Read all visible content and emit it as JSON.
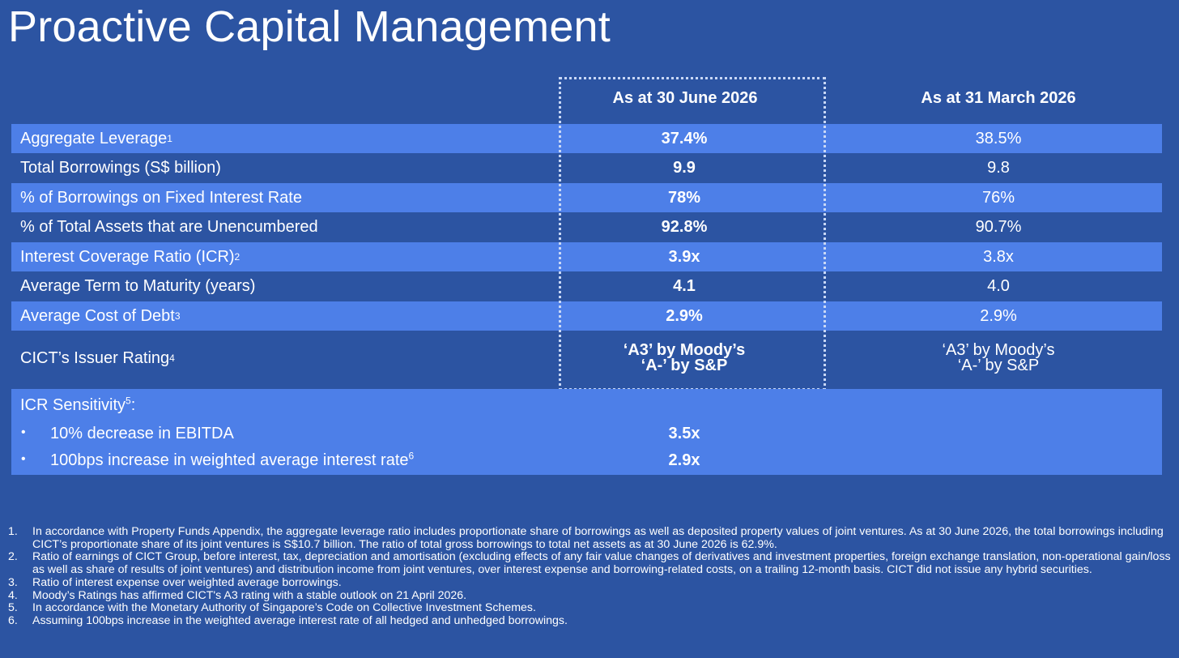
{
  "title": "Proactive Capital Management",
  "columns": {
    "current": "As at 30 June 2026",
    "prior": "As at 31 March 2026"
  },
  "rows": [
    {
      "label": "Aggregate Leverage",
      "sup": "1",
      "current": "37.4%",
      "prior": "38.5%"
    },
    {
      "label": "Total Borrowings (S$ billion)",
      "sup": "",
      "current": "9.9",
      "prior": "9.8"
    },
    {
      "label": "% of Borrowings on Fixed Interest Rate",
      "sup": "",
      "current": "78%",
      "prior": "76%"
    },
    {
      "label": "% of Total Assets that are Unencumbered",
      "sup": "",
      "current": "92.8%",
      "prior": "90.7%"
    },
    {
      "label": "Interest Coverage Ratio (ICR)",
      "sup": "2",
      "current": "3.9x",
      "prior": "3.8x"
    },
    {
      "label": "Average Term to Maturity (years)",
      "sup": "",
      "current": "4.1",
      "prior": "4.0"
    },
    {
      "label": "Average Cost of Debt",
      "sup": "3",
      "current": "2.9%",
      "prior": "2.9%"
    },
    {
      "label": "CICT’s Issuer Rating",
      "sup": "4",
      "current_line1": "‘A3’ by Moody’s",
      "current_line2": "‘A-’ by S&P",
      "prior_line1": "‘A3’ by Moody’s",
      "prior_line2": "‘A-’ by S&P"
    }
  ],
  "sensitivity": {
    "heading": "ICR Sensitivity",
    "heading_sup": "5",
    "heading_suffix": ":",
    "bullet": "•",
    "items": [
      {
        "label": "10% decrease in EBITDA",
        "sup": "",
        "value": "3.5x"
      },
      {
        "label": "100bps increase in weighted average interest rate",
        "sup": "6",
        "value": "2.9x"
      }
    ]
  },
  "footnotes": [
    {
      "num": "1.",
      "text": "In accordance with Property Funds Appendix, the aggregate leverage ratio includes proportionate share of borrowings as well as deposited property values of joint ventures. As at 30 June 2026, the total borrowings including CICT’s proportionate share of its joint ventures is S$10.7 billion. The ratio of total gross borrowings to total net assets as at 30 June 2026 is 62.9%."
    },
    {
      "num": "2.",
      "text": "Ratio of earnings of CICT Group, before interest, tax, depreciation and amortisation (excluding effects of any fair value changes of derivatives and investment properties, foreign exchange translation, non-operational gain/loss as well as share of results of joint ventures) and distribution income from joint ventures, over interest expense and borrowing-related costs, on a trailing 12-month basis. CICT did not issue any hybrid securities."
    },
    {
      "num": "3.",
      "text": "Ratio of interest expense over weighted average borrowings."
    },
    {
      "num": "4.",
      "text": "Moody’s Ratings has affirmed CICT's A3 rating with a stable outlook on 21 April 2026."
    },
    {
      "num": "5.",
      "text": "In accordance with the Monetary Authority of Singapore’s Code on Collective Investment Schemes."
    },
    {
      "num": "6.",
      "text": "Assuming 100bps increase in the weighted average interest rate of all hedged and unhedged borrowings."
    }
  ],
  "colors": {
    "background": "#2c54a2",
    "row_shade": "#4d7fe8",
    "text": "#ffffff"
  }
}
